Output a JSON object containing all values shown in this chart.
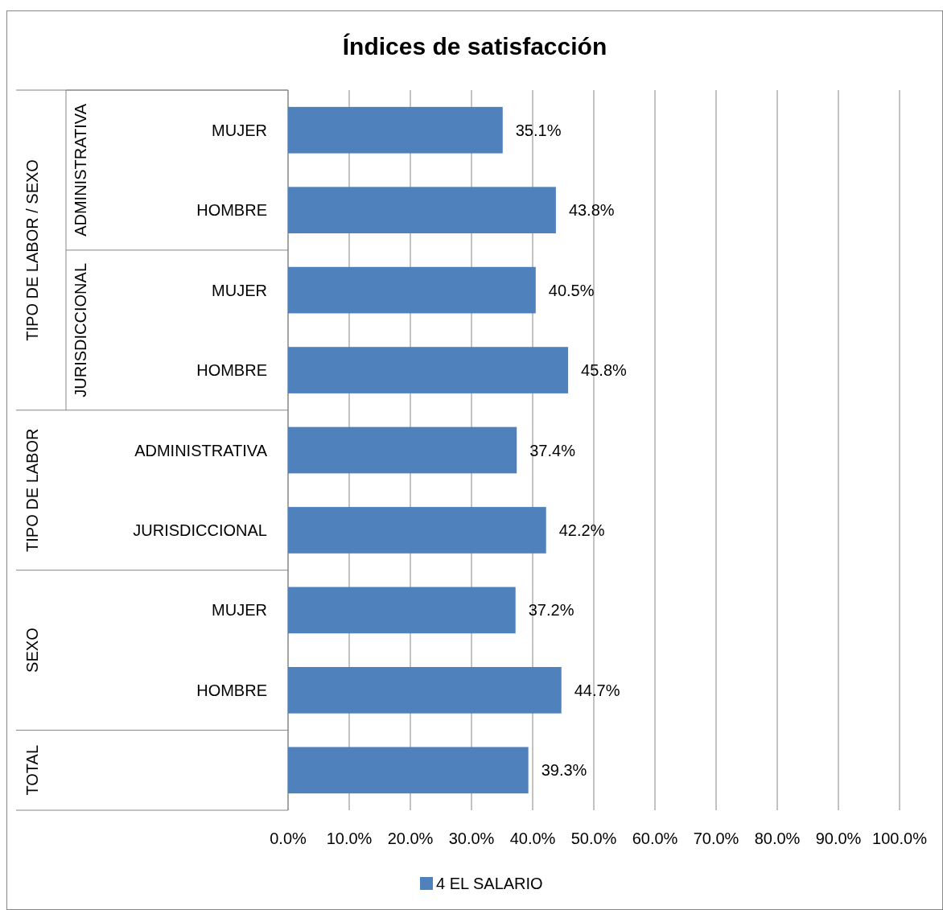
{
  "chart_data": {
    "type": "bar",
    "orientation": "horizontal",
    "title": "Índices de satisfacción",
    "categories": [
      "MUJER",
      "HOMBRE",
      "MUJER",
      "HOMBRE",
      "ADMINISTRATIVA",
      "JURISDICCIONAL",
      "MUJER",
      "HOMBRE",
      null
    ],
    "series": [
      {
        "name": "4 EL SALARIO",
        "color": "#4f81bd",
        "values": [
          35.1,
          43.8,
          40.5,
          45.8,
          37.4,
          42.2,
          37.2,
          44.7,
          39.3
        ],
        "value_labels": [
          "35.1%",
          "43.8%",
          "40.5%",
          "45.8%",
          "37.4%",
          "42.2%",
          "37.2%",
          "44.7%",
          "39.3%"
        ]
      }
    ],
    "xlim": [
      0,
      100
    ],
    "xticks": [
      {
        "value": 0,
        "label": "0.0%"
      },
      {
        "value": 10,
        "label": "10.0%"
      },
      {
        "value": 20,
        "label": "20.0%"
      },
      {
        "value": 30,
        "label": "30.0%"
      },
      {
        "value": 40,
        "label": "40.0%"
      },
      {
        "value": 50,
        "label": "50.0%"
      },
      {
        "value": 60,
        "label": "60.0%"
      },
      {
        "value": 70,
        "label": "70.0%"
      },
      {
        "value": 80,
        "label": "80.0%"
      },
      {
        "value": 90,
        "label": "90.0%"
      },
      {
        "value": 100,
        "label": "100.0%"
      }
    ],
    "grid": "x",
    "legend": "bottom",
    "annotations": [
      "TIPO DE LABOR / SEXO",
      "ADMINISTRATIVA",
      "JURISDICCIONAL",
      "TIPO DE LABOR",
      "SEXO",
      "TOTAL"
    ]
  }
}
